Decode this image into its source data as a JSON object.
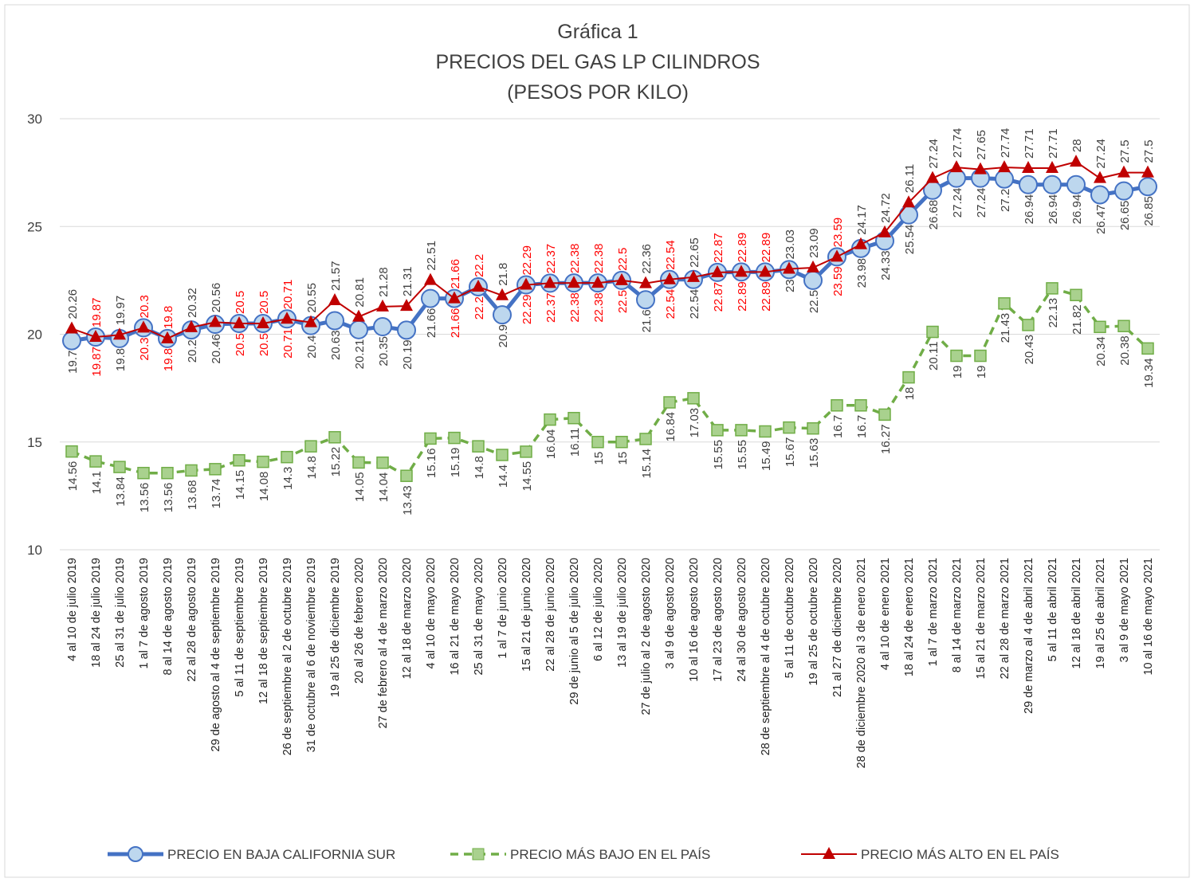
{
  "chart_data": {
    "type": "line",
    "title": [
      "Gráfica 1",
      "PRECIOS DEL GAS LP CILINDROS",
      "(PESOS POR KILO)"
    ],
    "categories": [
      "4 al 10 de julio 2019",
      "18 al 24 de julio 2019",
      "25 al 31 de julio 2019",
      "1 al 7 de agosto 2019",
      "8 al 14 de agosto 2019",
      "22 al 28 de agosto 2019",
      "29 de agosto al 4 de septiembre 2019",
      "5 al 11 de septiembre 2019",
      "12 al 18 de septiembre 2019",
      "26 de septiembre al 2 de octubre 2019",
      "31 de octubre al 6 de noviembre 2019",
      "19 al 25 de diciembre 2019",
      "20 al 26 de febrero 2020",
      "27 de febrero al 4 de marzo 2020",
      "12 al 18 de marzo 2020",
      "4 al 10 de mayo 2020",
      "16 al 21 de mayo 2020",
      "25 al 31 de mayo 2020",
      "1 al 7 de junio 2020",
      "15 al 21 de junio 2020",
      "22 al 28 de junio 2020",
      "29 de junio al 5 de julio 2020",
      "6 al 12 de julio 2020",
      "13 al 19 de julio 2020",
      "27 de julio al 2 de agosto 2020",
      "3 al 9 de agosto 2020",
      "10 al 16 de agosto 2020",
      "17 al 23 de agosto 2020",
      "24 al 30 de agosto 2020",
      "28 de septiembre al 4 de octubre 2020",
      "5 al 11 de octubre 2020",
      "19 al 25 de octubre 2020",
      "21 al 27 de diciembre 2020",
      "28 de diciembre 2020 al 3 de enero 2021",
      "4 al 10 de enero 2021",
      "18 al 24 de enero 2021",
      "1 al 7 de marzo 2021",
      "8 al 14 de marzo 2021",
      "15 al 21 de marzo 2021",
      "22 al 28 de marzo 2021",
      "29 de marzo al 4 de abril 2021",
      "5 al 11 de abril 2021",
      "12 al 18 de abril 2021",
      "19 al 25 de abril 2021",
      "3 al 9 de mayo 2021",
      "10 al 16 de mayo 2021"
    ],
    "series": [
      {
        "name": "PRECIO EN BAJA CALIFORNIA SUR",
        "color": "#4472c4",
        "marker": "circle",
        "label_position": "below",
        "values": [
          19.7,
          19.87,
          19.8,
          20.3,
          19.8,
          20.2,
          20.46,
          20.5,
          20.5,
          20.71,
          20.4,
          20.63,
          20.21,
          20.35,
          20.19,
          21.66,
          21.66,
          22.2,
          20.9,
          22.29,
          22.37,
          22.38,
          22.38,
          22.5,
          21.6,
          22.54,
          22.54,
          22.87,
          22.89,
          22.89,
          23,
          22.5,
          23.59,
          23.98,
          24.33,
          25.54,
          26.68,
          27.24,
          27.24,
          27.2,
          26.94,
          26.94,
          26.94,
          26.47,
          26.65,
          26.85
        ]
      },
      {
        "name": "PRECIO MÁS BAJO EN EL PAÍS",
        "color": "#70ad47",
        "marker": "square",
        "label_position": "below",
        "values": [
          14.56,
          14.1,
          13.84,
          13.56,
          13.56,
          13.68,
          13.74,
          14.15,
          14.08,
          14.3,
          14.8,
          15.22,
          14.05,
          14.04,
          13.43,
          15.16,
          15.19,
          14.8,
          14.4,
          14.55,
          16.04,
          16.11,
          15,
          15,
          15.14,
          16.84,
          17.03,
          15.55,
          15.55,
          15.49,
          15.67,
          15.63,
          16.7,
          16.7,
          16.27,
          18,
          20.11,
          19,
          19,
          21.43,
          20.43,
          22.13,
          21.82,
          20.34,
          20.38,
          19.34
        ]
      },
      {
        "name": "PRECIO MÁS ALTO EN EL PAÍS",
        "color": "#c00000",
        "marker": "triangle",
        "label_position": "above",
        "values": [
          20.26,
          19.87,
          19.97,
          20.3,
          19.8,
          20.32,
          20.56,
          20.5,
          20.5,
          20.71,
          20.55,
          21.57,
          20.81,
          21.28,
          21.31,
          22.51,
          21.66,
          22.2,
          21.8,
          22.29,
          22.37,
          22.38,
          22.38,
          22.5,
          22.36,
          22.54,
          22.65,
          22.87,
          22.89,
          22.89,
          23.03,
          23.09,
          23.59,
          24.17,
          24.72,
          26.11,
          27.24,
          27.74,
          27.65,
          27.74,
          27.71,
          27.71,
          28,
          27.24,
          27.5,
          27.5
        ]
      }
    ],
    "ylim": [
      10,
      30
    ],
    "yticks": [
      10,
      15,
      20,
      25,
      30
    ],
    "grid": true,
    "legend": "bottom"
  }
}
